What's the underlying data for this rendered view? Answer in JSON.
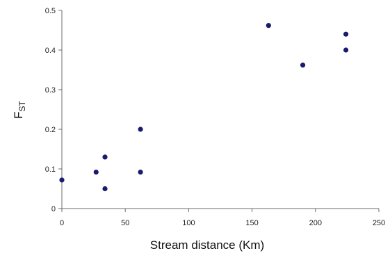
{
  "chart_data": {
    "type": "scatter",
    "title": "",
    "xlabel": "Stream distance (Km)",
    "ylabel": {
      "main": "F",
      "sub": "ST"
    },
    "xlim": [
      0,
      250
    ],
    "ylim": [
      0,
      0.5
    ],
    "x_ticks": [
      "0",
      "50",
      "100",
      "150",
      "200",
      "250"
    ],
    "y_ticks": [
      "0",
      "0.1",
      "0.2",
      "0.3",
      "0.4",
      "0.5"
    ],
    "grid": false,
    "legend": "none",
    "marker_color": "#1a1a6e",
    "series": [
      {
        "points": [
          {
            "x": 0,
            "y": 0.072
          },
          {
            "x": 27,
            "y": 0.092
          },
          {
            "x": 34,
            "y": 0.13
          },
          {
            "x": 34,
            "y": 0.05
          },
          {
            "x": 62,
            "y": 0.2
          },
          {
            "x": 62,
            "y": 0.092
          },
          {
            "x": 163,
            "y": 0.462
          },
          {
            "x": 190,
            "y": 0.362
          },
          {
            "x": 224,
            "y": 0.44
          },
          {
            "x": 224,
            "y": 0.4
          }
        ]
      }
    ]
  }
}
